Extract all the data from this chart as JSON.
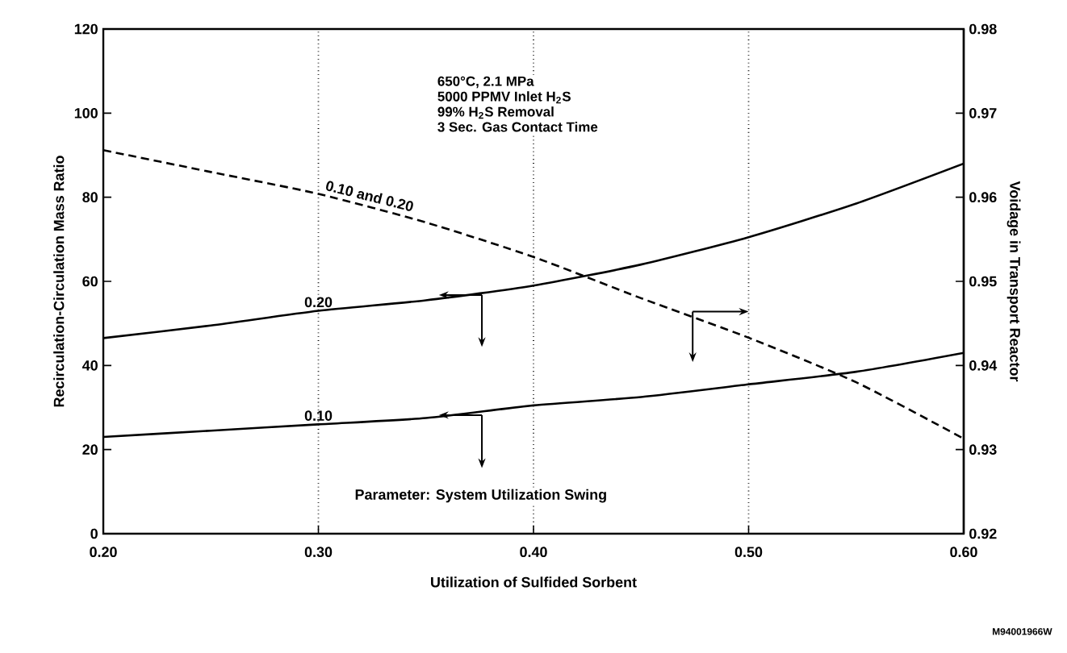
{
  "chart_data": {
    "type": "line",
    "xlabel": "Utilization of Sulfided Sorbent",
    "ylabel": "Recirculation-Circulation Mass Ratio",
    "y2label": "Voidage in Transport Reactor",
    "x": [
      0.2,
      0.25,
      0.3,
      0.35,
      0.4,
      0.45,
      0.5,
      0.55,
      0.6
    ],
    "series": [
      {
        "name": "0.20",
        "color": "#000000",
        "line_style": "solid",
        "values": [
          46.5,
          49.5,
          53,
          55.5,
          59,
          64,
          70.5,
          78.5,
          88
        ]
      },
      {
        "name": "0.10",
        "color": "#000000",
        "line_style": "solid",
        "values": [
          23,
          24.5,
          26,
          27.5,
          30.5,
          32.5,
          35.5,
          38.5,
          43
        ]
      },
      {
        "name": "0.10 and 0.20",
        "color": "#000000",
        "line_style": "dashed",
        "axis": "y2",
        "values": [
          0.9656,
          0.963,
          0.9604,
          0.957,
          0.9529,
          0.948,
          0.9433,
          0.938,
          0.9313
        ]
      }
    ],
    "xlim": [
      0.2,
      0.6
    ],
    "xticks": [
      {
        "value": 0.2,
        "label": "0.20"
      },
      {
        "value": 0.3,
        "label": "0.30"
      },
      {
        "value": 0.4,
        "label": "0.40"
      },
      {
        "value": 0.5,
        "label": "0.50"
      },
      {
        "value": 0.6,
        "label": "0.60"
      }
    ],
    "ylim": [
      0,
      120
    ],
    "yticks": [
      0,
      20,
      40,
      60,
      80,
      100,
      120
    ],
    "y2lim": [
      0.92,
      0.98
    ],
    "y2ticks": [
      0.92,
      0.93,
      0.94,
      0.95,
      0.96,
      0.97,
      0.98
    ],
    "grid": "x",
    "legend": false,
    "marker": "none",
    "annotations": [
      "650°C, 2.1 MPa",
      "5000 PPMV Inlet H$_{2}$S",
      "99% H$_{2}$S Removal",
      "3 Sec. Gas Contact Time",
      "Parameter:  System Utilization Swing",
      "M94001966W"
    ]
  }
}
